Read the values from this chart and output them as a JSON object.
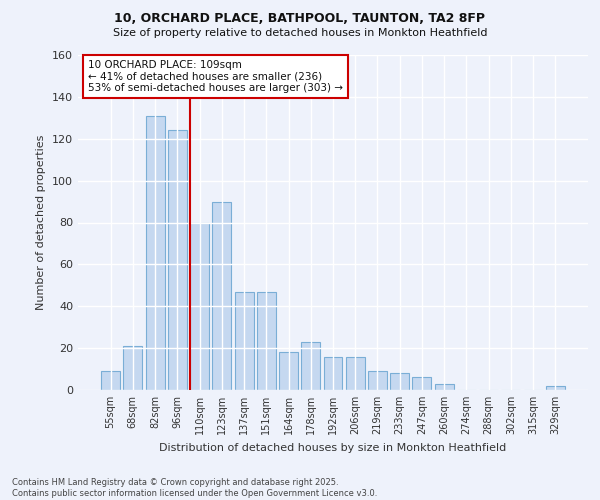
{
  "title1": "10, ORCHARD PLACE, BATHPOOL, TAUNTON, TA2 8FP",
  "title2": "Size of property relative to detached houses in Monkton Heathfield",
  "xlabel": "Distribution of detached houses by size in Monkton Heathfield",
  "ylabel": "Number of detached properties",
  "categories": [
    "55sqm",
    "68sqm",
    "82sqm",
    "96sqm",
    "110sqm",
    "123sqm",
    "137sqm",
    "151sqm",
    "164sqm",
    "178sqm",
    "192sqm",
    "206sqm",
    "219sqm",
    "233sqm",
    "247sqm",
    "260sqm",
    "274sqm",
    "288sqm",
    "302sqm",
    "315sqm",
    "329sqm"
  ],
  "values": [
    9,
    21,
    131,
    124,
    80,
    90,
    47,
    47,
    18,
    23,
    16,
    16,
    9,
    8,
    6,
    3,
    0,
    0,
    0,
    0,
    2
  ],
  "bar_color": "#c5d8f0",
  "bar_edge_color": "#7aaed6",
  "vline_color": "#cc0000",
  "annotation_text": "10 ORCHARD PLACE: 109sqm\n← 41% of detached houses are smaller (236)\n53% of semi-detached houses are larger (303) →",
  "annotation_box_color": "#ffffff",
  "annotation_box_edge": "#cc0000",
  "footer": "Contains HM Land Registry data © Crown copyright and database right 2025.\nContains public sector information licensed under the Open Government Licence v3.0.",
  "bg_color": "#eef2fb",
  "plot_bg_color": "#eef2fb",
  "grid_color": "#ffffff",
  "ylim": [
    0,
    160
  ],
  "yticks": [
    0,
    20,
    40,
    60,
    80,
    100,
    120,
    140,
    160
  ]
}
